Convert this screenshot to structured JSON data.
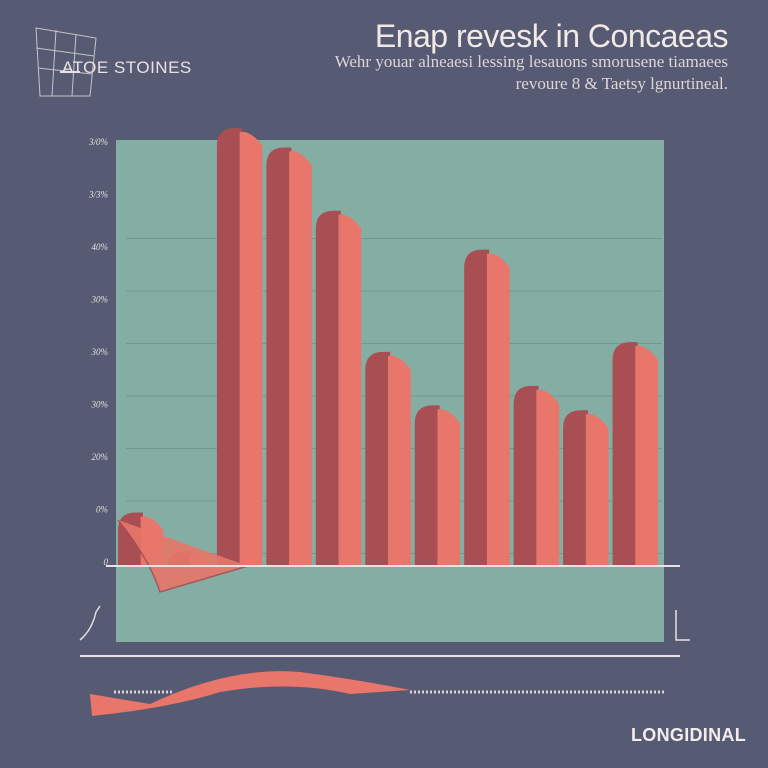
{
  "header": {
    "title": "Enap revesk in Concaeas",
    "subtitle_line1": "Wehr youar alneaesi lessing lesauons smorusene tiamaees",
    "subtitle_line2": "revoure 8 & Taetsy lgnurtineal."
  },
  "brand": {
    "name": "ATOE STOINES",
    "logo_icon": "grid-logo-icon"
  },
  "footer": {
    "label": "LONGIDINAL"
  },
  "colors": {
    "background": "#565a73",
    "plot_area": "#84aea3",
    "bar_face": "#e8766a",
    "bar_shadow": "#a94f54",
    "axis_line": "#e8e2e2"
  },
  "chart_data": {
    "type": "area",
    "title": "Enap revesk in Concaeas",
    "xlabel": "",
    "ylabel": "",
    "y_tick_labels": [
      "3/0%",
      "3/3%",
      "40%",
      "30%",
      "30%",
      "30%",
      "20%",
      "0%",
      "0"
    ],
    "ylim": [
      0,
      9
    ],
    "grid": true,
    "series": [
      {
        "values": [
          1.1,
          0.3,
          9.1,
          8.6,
          7.3,
          4.4,
          3.3,
          6.5,
          3.7,
          3.2,
          4.6
        ]
      }
    ],
    "x": [
      0,
      1,
      2,
      3,
      4,
      5,
      6,
      7,
      8,
      9,
      10
    ]
  }
}
